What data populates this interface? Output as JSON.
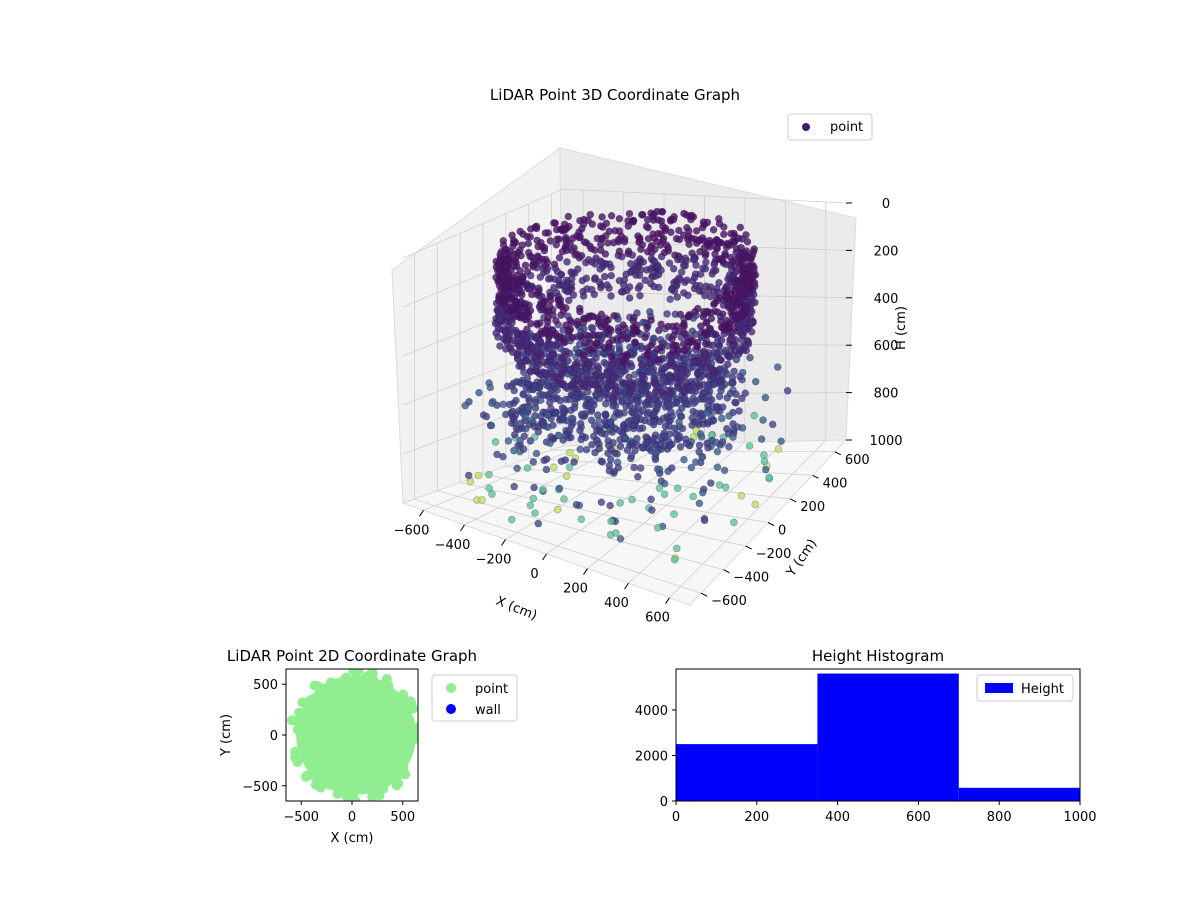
{
  "chart_data": [
    {
      "type": "scatter3d",
      "title": "LiDAR Point 3D Coordinate Graph",
      "xlabel": "X (cm)",
      "ylabel": "Y (cm)",
      "zlabel": "H (cm)",
      "xlim": [
        -700,
        700
      ],
      "ylim": [
        -700,
        700
      ],
      "zlim": [
        0,
        1000
      ],
      "x_ticks": [
        "−600",
        "−400",
        "−200",
        "0",
        "200",
        "400",
        "600"
      ],
      "y_ticks": [
        "−600",
        "−400",
        "−200",
        "0",
        "200",
        "400",
        "600"
      ],
      "z_ticks": [
        "0",
        "200",
        "400",
        "600",
        "800",
        "1000"
      ],
      "z_inverted": true,
      "legend": {
        "placement": "top-right",
        "entries": [
          "point"
        ]
      },
      "series": [
        {
          "name": "point",
          "color_map": "viridis",
          "color": "#46196b"
        }
      ],
      "structure": {
        "upper_ring": {
          "radius": 560,
          "h": [
            0,
            350
          ]
        },
        "lower_disc": {
          "radius": 520,
          "h": [
            350,
            700
          ]
        },
        "scattered_points": {
          "radius_max": 700,
          "h": [
            500,
            1000
          ]
        }
      },
      "grid": true
    },
    {
      "type": "scatter",
      "title": "LiDAR Point 2D Coordinate Graph",
      "xlabel": "X (cm)",
      "ylabel": "Y (cm)",
      "xlim": [
        -650,
        650
      ],
      "ylim": [
        -650,
        650
      ],
      "x_ticks": [
        "−500",
        "0",
        "500"
      ],
      "y_ticks": [
        "−500",
        "0",
        "500"
      ],
      "legend": {
        "placement": "outside-right",
        "entries": [
          "point",
          "wall"
        ]
      },
      "series": [
        {
          "name": "point",
          "color": "#90ee90"
        },
        {
          "name": "wall",
          "color": "#0000ff"
        }
      ],
      "disc_radius": 590
    },
    {
      "type": "histogram",
      "title": "Height Histogram",
      "bins": [
        [
          0,
          350
        ],
        [
          350,
          700
        ],
        [
          700,
          1000
        ]
      ],
      "values": [
        2500,
        5600,
        580
      ],
      "xlim": [
        0,
        1000
      ],
      "ylim": [
        0,
        5800
      ],
      "x_ticks": [
        "0",
        "200",
        "400",
        "600",
        "800",
        "1000"
      ],
      "y_ticks": [
        "0",
        "2000",
        "4000"
      ],
      "legend": {
        "placement": "top-right",
        "entries": [
          "Height"
        ]
      },
      "series": [
        {
          "name": "Height",
          "color": "#0000ff"
        }
      ]
    }
  ]
}
